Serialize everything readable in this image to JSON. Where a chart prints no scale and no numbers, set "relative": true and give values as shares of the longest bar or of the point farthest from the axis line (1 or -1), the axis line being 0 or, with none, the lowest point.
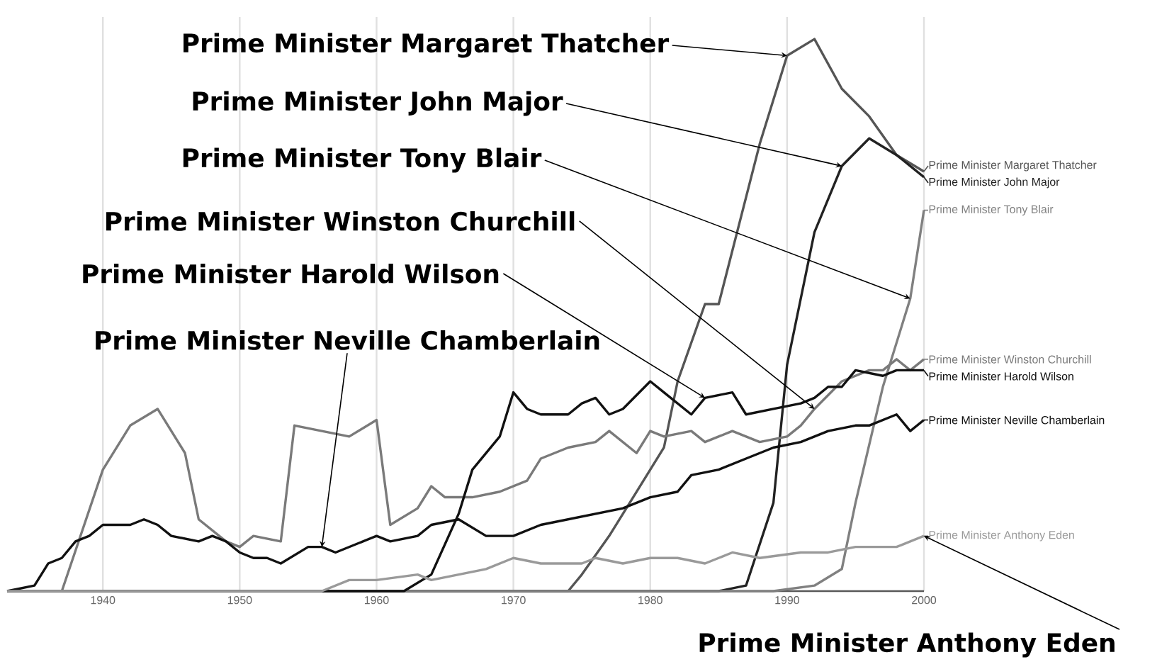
{
  "chart_data": {
    "type": "line",
    "relative": true,
    "grid": true,
    "legend": "right",
    "xlim": [
      1933,
      2000
    ],
    "xticks": [
      1940,
      1950,
      1960,
      1970,
      1980,
      1990,
      2000
    ],
    "series": [
      {
        "name": "Prime Minister Margaret Thatcher",
        "color": "#555555",
        "x": [
          1933,
          1972,
          1974,
          1975,
          1977,
          1979,
          1981,
          1982,
          1984,
          1985,
          1988,
          1990,
          1992,
          1994,
          1996,
          1998,
          2000
        ],
        "values": [
          0,
          0,
          0,
          0.03,
          0.1,
          0.18,
          0.26,
          0.38,
          0.52,
          0.52,
          0.81,
          0.97,
          1.0,
          0.91,
          0.86,
          0.79,
          0.76
        ]
      },
      {
        "name": "Prime Minister John Major",
        "color": "#222222",
        "x": [
          1933,
          1985,
          1987,
          1989,
          1990,
          1992,
          1994,
          1996,
          1998,
          2000
        ],
        "values": [
          0,
          0,
          0.01,
          0.16,
          0.41,
          0.65,
          0.77,
          0.82,
          0.79,
          0.75
        ]
      },
      {
        "name": "Prime Minister Tony Blair",
        "color": "#808080",
        "x": [
          1933,
          1989,
          1992,
          1994,
          1995,
          1997,
          1999,
          2000
        ],
        "values": [
          0,
          0,
          0.01,
          0.04,
          0.16,
          0.37,
          0.53,
          0.69
        ]
      },
      {
        "name": "Prime Minister Winston Churchill",
        "color": "#7a7a7a",
        "x": [
          1933,
          1937,
          1940,
          1942,
          1944,
          1946,
          1947,
          1949,
          1950,
          1951,
          1953,
          1954,
          1956,
          1958,
          1960,
          1961,
          1963,
          1964,
          1965,
          1967,
          1969,
          1971,
          1972,
          1974,
          1976,
          1977,
          1979,
          1980,
          1981,
          1983,
          1984,
          1986,
          1988,
          1990,
          1991,
          1992,
          1994,
          1996,
          1997,
          1998,
          1999,
          2000
        ],
        "values": [
          0,
          0,
          0.22,
          0.3,
          0.33,
          0.25,
          0.13,
          0.09,
          0.08,
          0.1,
          0.09,
          0.3,
          0.29,
          0.28,
          0.31,
          0.12,
          0.15,
          0.19,
          0.17,
          0.17,
          0.18,
          0.2,
          0.24,
          0.26,
          0.27,
          0.29,
          0.25,
          0.29,
          0.28,
          0.29,
          0.27,
          0.29,
          0.27,
          0.28,
          0.3,
          0.33,
          0.38,
          0.4,
          0.4,
          0.42,
          0.4,
          0.42
        ]
      },
      {
        "name": "Prime Minister Harold Wilson",
        "color": "#111111",
        "x": [
          1933,
          1962,
          1964,
          1966,
          1967,
          1969,
          1970,
          1971,
          1972,
          1973,
          1974,
          1975,
          1976,
          1977,
          1978,
          1980,
          1981,
          1983,
          1984,
          1986,
          1987,
          1989,
          1991,
          1992,
          1993,
          1994,
          1995,
          1997,
          1998,
          2000
        ],
        "values": [
          0,
          0,
          0.03,
          0.14,
          0.22,
          0.28,
          0.36,
          0.33,
          0.32,
          0.32,
          0.32,
          0.34,
          0.35,
          0.32,
          0.33,
          0.38,
          0.36,
          0.32,
          0.35,
          0.36,
          0.32,
          0.33,
          0.34,
          0.35,
          0.37,
          0.37,
          0.4,
          0.39,
          0.4,
          0.4
        ]
      },
      {
        "name": "Prime Minister Neville Chamberlain",
        "color": "#111111",
        "x": [
          1933,
          1935,
          1936,
          1937,
          1938,
          1939,
          1940,
          1942,
          1943,
          1944,
          1945,
          1947,
          1948,
          1949,
          1950,
          1951,
          1952,
          1953,
          1955,
          1956,
          1957,
          1958,
          1960,
          1961,
          1963,
          1964,
          1966,
          1968,
          1970,
          1972,
          1974,
          1976,
          1978,
          1980,
          1982,
          1983,
          1985,
          1987,
          1989,
          1991,
          1993,
          1995,
          1996,
          1998,
          1999,
          2000
        ],
        "values": [
          0,
          0.01,
          0.05,
          0.06,
          0.09,
          0.1,
          0.12,
          0.12,
          0.13,
          0.12,
          0.1,
          0.09,
          0.1,
          0.09,
          0.07,
          0.06,
          0.06,
          0.05,
          0.08,
          0.08,
          0.07,
          0.08,
          0.1,
          0.09,
          0.1,
          0.12,
          0.13,
          0.1,
          0.1,
          0.12,
          0.13,
          0.14,
          0.15,
          0.17,
          0.18,
          0.21,
          0.22,
          0.24,
          0.26,
          0.27,
          0.29,
          0.3,
          0.3,
          0.32,
          0.29,
          0.31
        ]
      },
      {
        "name": "Prime Minister Anthony Eden",
        "color": "#9a9a9a",
        "x": [
          1933,
          1956,
          1958,
          1960,
          1963,
          1964,
          1966,
          1968,
          1970,
          1972,
          1974,
          1975,
          1976,
          1978,
          1980,
          1982,
          1984,
          1986,
          1988,
          1991,
          1993,
          1995,
          1998,
          2000
        ],
        "values": [
          0,
          0,
          0.02,
          0.02,
          0.03,
          0.02,
          0.03,
          0.04,
          0.06,
          0.05,
          0.05,
          0.05,
          0.06,
          0.05,
          0.06,
          0.06,
          0.05,
          0.07,
          0.06,
          0.07,
          0.07,
          0.08,
          0.08,
          0.1
        ]
      }
    ],
    "annotations": [
      {
        "text": "Prime Minister Margaret Thatcher",
        "x": 1990,
        "y": 0.97
      },
      {
        "text": "Prime Minister John Major",
        "x": 1994,
        "y": 0.77
      },
      {
        "text": "Prime Minister Tony Blair",
        "x": 1999,
        "y": 0.53
      },
      {
        "text": "Prime Minister Winston Churchill",
        "x": 1992,
        "y": 0.33
      },
      {
        "text": "Prime Minister Harold Wilson",
        "x": 1984,
        "y": 0.35
      },
      {
        "text": "Prime Minister Neville Chamberlain",
        "x": 1956,
        "y": 0.08
      },
      {
        "text": "Prime Minister Anthony Eden",
        "x": 2000,
        "y": 0.1
      }
    ]
  }
}
